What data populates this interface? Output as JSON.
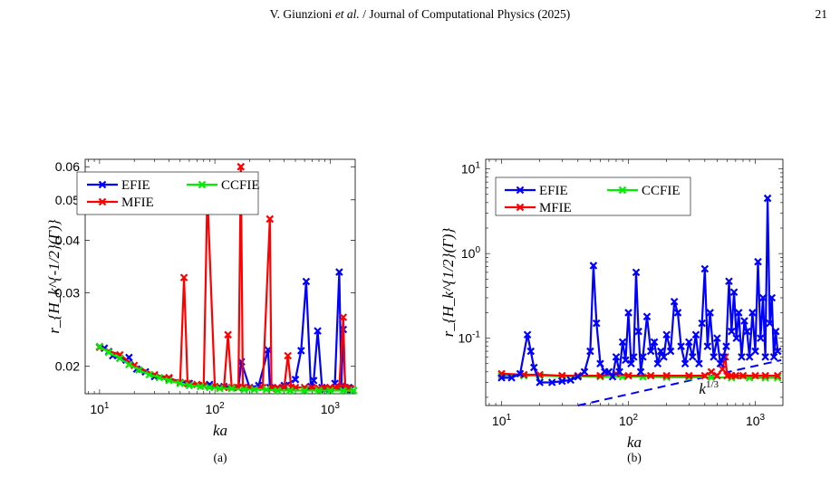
{
  "header": {
    "author": "V. Giunzioni",
    "et_al": "et al.",
    "journal": "Journal of Computational Physics (2025)",
    "page_number": "21"
  },
  "chart_data": [
    {
      "type": "line",
      "panel_label": "(a)",
      "xlabel": "ka",
      "ylabel": "r_{H_k^{-1/2}(Γ)}",
      "xscale": "log",
      "yscale": "log",
      "xlim": [
        7.5,
        1650
      ],
      "ylim": [
        0.0172,
        0.0625
      ],
      "x_ticks": [
        {
          "base": "10",
          "exp": "1",
          "value": 10
        },
        {
          "base": "10",
          "exp": "2",
          "value": 100
        },
        {
          "base": "10",
          "exp": "3",
          "value": 1000
        }
      ],
      "y_ticks": [
        {
          "label": "0.02",
          "value": 0.02
        },
        {
          "label": "0.03",
          "value": 0.03
        },
        {
          "label": "0.04",
          "value": 0.04
        },
        {
          "label": "0.05",
          "value": 0.05
        },
        {
          "label": "0.06",
          "value": 0.06
        }
      ],
      "legend_position": "top-left",
      "series": [
        {
          "name": "EFIE",
          "color": "#0000ff",
          "x": [
            10,
            11,
            12,
            13,
            15,
            17,
            18,
            21,
            25,
            30,
            40,
            60,
            90,
            120,
            160,
            170,
            200,
            240,
            290,
            300,
            350,
            400,
            500,
            560,
            620,
            680,
            720,
            780,
            850,
            900,
            1000,
            1100,
            1200,
            1250,
            1300,
            1350,
            1400,
            1450,
            1500
          ],
          "y": [
            0.0223,
            0.0221,
            0.0217,
            0.0212,
            0.0209,
            0.0207,
            0.021,
            0.0197,
            0.0194,
            0.0189,
            0.0187,
            0.0182,
            0.0181,
            0.0179,
            0.0178,
            0.0205,
            0.0178,
            0.018,
            0.0219,
            0.0178,
            0.0178,
            0.018,
            0.0186,
            0.0218,
            0.0319,
            0.0179,
            0.0185,
            0.0243,
            0.0178,
            0.0176,
            0.0177,
            0.0182,
            0.0336,
            0.0179,
            0.0245,
            0.0178,
            0.0176,
            0.0178,
            0.0176
          ]
        },
        {
          "name": "MFIE",
          "color": "#ff0000",
          "x": [
            10,
            15,
            20,
            30,
            40,
            50,
            54,
            58,
            70,
            80,
            86,
            100,
            120,
            130,
            140,
            160,
            168,
            175,
            200,
            260,
            300,
            310,
            350,
            400,
            430,
            460,
            500,
            600,
            700,
            800,
            900,
            1000,
            1100,
            1200,
            1300,
            1350,
            1400,
            1500
          ],
          "y": [
            0.0222,
            0.0213,
            0.0201,
            0.0191,
            0.0188,
            0.0183,
            0.0326,
            0.0182,
            0.0181,
            0.018,
            0.052,
            0.0179,
            0.0178,
            0.0238,
            0.0178,
            0.0178,
            0.06,
            0.0178,
            0.0178,
            0.0178,
            0.045,
            0.0177,
            0.0178,
            0.0178,
            0.0212,
            0.0178,
            0.0178,
            0.0178,
            0.0178,
            0.0177,
            0.0178,
            0.0178,
            0.0178,
            0.0178,
            0.0262,
            0.0178,
            0.0177,
            0.0177
          ]
        },
        {
          "name": "CCFIE",
          "color": "#00ee00",
          "x": [
            10,
            12,
            15,
            18,
            22,
            27,
            33,
            40,
            50,
            60,
            75,
            90,
            110,
            140,
            180,
            220,
            280,
            350,
            450,
            600,
            800,
            1000,
            1300,
            1600
          ],
          "y": [
            0.0223,
            0.0216,
            0.0209,
            0.0202,
            0.0196,
            0.0191,
            0.0188,
            0.0185,
            0.0182,
            0.018,
            0.0179,
            0.0178,
            0.0177,
            0.0177,
            0.0176,
            0.0176,
            0.0176,
            0.0175,
            0.0175,
            0.0175,
            0.0175,
            0.0175,
            0.0175,
            0.0175
          ]
        }
      ]
    },
    {
      "type": "line",
      "panel_label": "(b)",
      "xlabel": "ka",
      "ylabel": "r_{H_k^{1/2}(Γ)}",
      "xscale": "log",
      "yscale": "log",
      "xlim": [
        7.5,
        1650
      ],
      "ylim": [
        0.016,
        13
      ],
      "x_ticks": [
        {
          "base": "10",
          "exp": "1",
          "value": 10
        },
        {
          "base": "10",
          "exp": "2",
          "value": 100
        },
        {
          "base": "10",
          "exp": "3",
          "value": 1000
        }
      ],
      "y_ticks": [
        {
          "base": "10",
          "exp": "-1",
          "value": 0.1
        },
        {
          "base": "10",
          "exp": "0",
          "value": 1
        },
        {
          "base": "10",
          "exp": "1",
          "value": 10
        }
      ],
      "legend_position": "top-left",
      "annotation": {
        "base": "k",
        "exp": "1/3",
        "x": 430,
        "y": 0.022
      },
      "reference_line": {
        "x": [
          40,
          1600
        ],
        "y": [
          0.016,
          0.055
        ],
        "color": "#0000ff",
        "style": "dashed"
      },
      "series": [
        {
          "name": "EFIE",
          "color": "#0000ff",
          "x": [
            10,
            12,
            14,
            16,
            17,
            18,
            20,
            25,
            30,
            35,
            40,
            45,
            50,
            53,
            56,
            60,
            65,
            70,
            75,
            80,
            85,
            90,
            95,
            100,
            105,
            110,
            115,
            120,
            125,
            130,
            140,
            150,
            160,
            170,
            180,
            190,
            200,
            215,
            230,
            245,
            260,
            280,
            300,
            320,
            340,
            360,
            380,
            400,
            420,
            440,
            470,
            500,
            530,
            560,
            590,
            620,
            650,
            680,
            710,
            740,
            780,
            820,
            860,
            900,
            950,
            1000,
            1050,
            1100,
            1150,
            1200,
            1250,
            1300,
            1350,
            1400,
            1450,
            1500
          ],
          "y": [
            0.034,
            0.034,
            0.038,
            0.11,
            0.07,
            0.045,
            0.03,
            0.03,
            0.031,
            0.032,
            0.035,
            0.04,
            0.07,
            0.72,
            0.15,
            0.05,
            0.04,
            0.04,
            0.035,
            0.06,
            0.04,
            0.09,
            0.055,
            0.2,
            0.05,
            0.06,
            0.6,
            0.12,
            0.04,
            0.06,
            0.18,
            0.07,
            0.09,
            0.05,
            0.07,
            0.06,
            0.11,
            0.07,
            0.27,
            0.2,
            0.08,
            0.05,
            0.09,
            0.06,
            0.11,
            0.05,
            0.15,
            0.66,
            0.08,
            0.2,
            0.06,
            0.1,
            0.05,
            0.06,
            0.08,
            0.47,
            0.12,
            0.35,
            0.1,
            0.2,
            0.06,
            0.16,
            0.12,
            0.06,
            0.2,
            0.07,
            0.8,
            0.1,
            0.3,
            0.06,
            4.5,
            0.15,
            0.3,
            0.06,
            0.12,
            0.07
          ]
        },
        {
          "name": "MFIE",
          "color": "#ff0000",
          "x": [
            10,
            15,
            20,
            30,
            40,
            60,
            80,
            100,
            150,
            200,
            300,
            400,
            450,
            500,
            550,
            580,
            600,
            650,
            700,
            800,
            1000,
            1200,
            1500
          ],
          "y": [
            0.038,
            0.037,
            0.037,
            0.036,
            0.036,
            0.036,
            0.038,
            0.036,
            0.036,
            0.036,
            0.036,
            0.036,
            0.04,
            0.036,
            0.043,
            0.06,
            0.036,
            0.036,
            0.036,
            0.036,
            0.036,
            0.036,
            0.036
          ]
        },
        {
          "name": "CCFIE",
          "color": "#00ee00",
          "x": [
            10,
            15,
            20,
            30,
            40,
            60,
            90,
            130,
            200,
            300,
            450,
            650,
            900,
            1200,
            1500
          ],
          "y": [
            0.036,
            0.036,
            0.036,
            0.0355,
            0.0355,
            0.035,
            0.035,
            0.035,
            0.0345,
            0.0345,
            0.0345,
            0.034,
            0.034,
            0.034,
            0.034
          ]
        }
      ]
    }
  ]
}
